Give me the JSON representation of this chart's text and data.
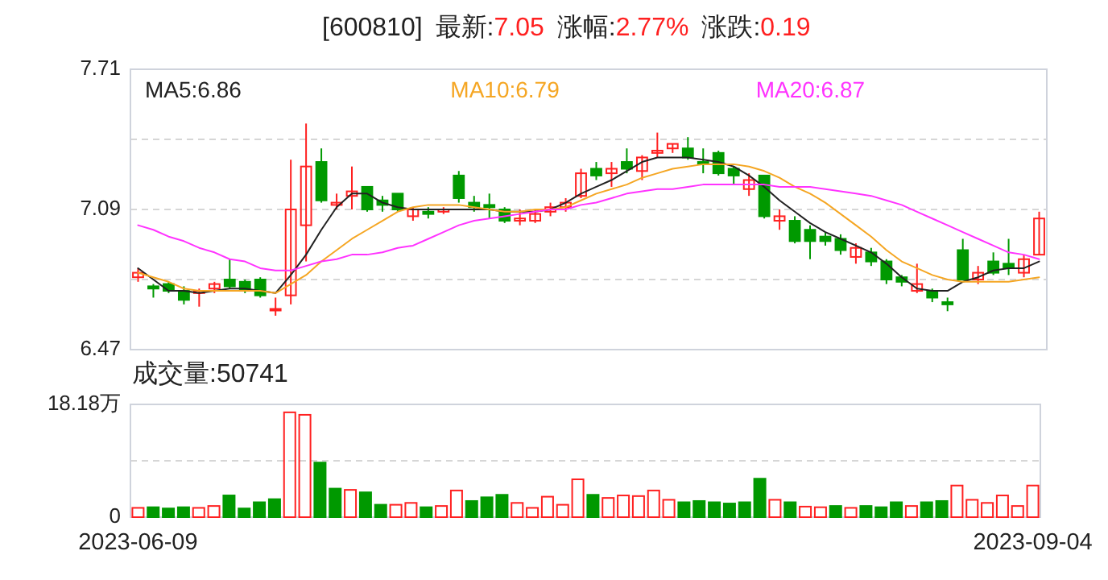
{
  "chart_data": [
    {
      "type": "candlestick",
      "title": "[600810] 最新:7.05 涨幅:2.77% 涨跌:0.19",
      "categories": [
        null,
        null,
        null,
        null,
        null,
        null,
        null,
        null,
        null,
        null,
        null,
        null,
        null,
        null,
        null,
        null,
        null,
        null,
        null,
        null,
        null,
        null,
        null,
        null,
        null,
        null,
        null,
        null,
        null,
        null,
        null,
        null,
        null,
        null,
        null,
        null,
        null,
        null,
        null,
        null,
        null,
        null,
        null,
        null,
        null,
        null,
        null,
        null,
        null,
        null,
        null,
        null,
        null,
        null,
        null,
        null,
        null,
        null,
        null,
        null
      ],
      "ohlc": [
        [
          6.79,
          6.83,
          6.77,
          6.81
        ],
        [
          6.75,
          6.76,
          6.7,
          6.74
        ],
        [
          6.76,
          6.77,
          6.72,
          6.73
        ],
        [
          6.73,
          6.75,
          6.67,
          6.69
        ],
        [
          6.72,
          6.74,
          6.66,
          6.73
        ],
        [
          6.74,
          6.77,
          6.72,
          6.76
        ],
        [
          6.78,
          6.87,
          6.74,
          6.75
        ],
        [
          6.77,
          6.78,
          6.72,
          6.73
        ],
        [
          6.78,
          6.79,
          6.7,
          6.71
        ],
        [
          6.65,
          6.7,
          6.62,
          6.65
        ],
        [
          6.71,
          7.31,
          6.67,
          7.09
        ],
        [
          7.02,
          7.47,
          6.86,
          7.28
        ],
        [
          7.3,
          7.36,
          7.12,
          7.13
        ],
        [
          7.11,
          7.16,
          7.09,
          7.12
        ],
        [
          7.15,
          7.28,
          7.09,
          7.17
        ],
        [
          7.19,
          7.19,
          7.08,
          7.09
        ],
        [
          7.13,
          7.15,
          7.08,
          7.11
        ],
        [
          7.16,
          7.16,
          7.08,
          7.09
        ],
        [
          7.06,
          7.1,
          7.04,
          7.09
        ],
        [
          7.08,
          7.1,
          7.05,
          7.07
        ],
        [
          7.08,
          7.1,
          7.07,
          7.09
        ],
        [
          7.24,
          7.26,
          7.12,
          7.14
        ],
        [
          7.12,
          7.15,
          7.08,
          7.1
        ],
        [
          7.11,
          7.16,
          7.05,
          7.1
        ],
        [
          7.09,
          7.1,
          7.03,
          7.04
        ],
        [
          7.04,
          7.09,
          7.02,
          7.05
        ],
        [
          7.04,
          7.09,
          7.03,
          7.07
        ],
        [
          7.08,
          7.12,
          7.06,
          7.1
        ],
        [
          7.1,
          7.14,
          7.08,
          7.12
        ],
        [
          7.15,
          7.27,
          7.14,
          7.25
        ],
        [
          7.27,
          7.3,
          7.22,
          7.24
        ],
        [
          7.25,
          7.3,
          7.19,
          7.27
        ],
        [
          7.3,
          7.36,
          7.25,
          7.27
        ],
        [
          7.26,
          7.33,
          7.22,
          7.32
        ],
        [
          7.34,
          7.43,
          7.32,
          7.35
        ],
        [
          7.36,
          7.38,
          7.34,
          7.38
        ],
        [
          7.36,
          7.41,
          7.31,
          7.32
        ],
        [
          7.3,
          7.36,
          7.25,
          7.29
        ],
        [
          7.34,
          7.35,
          7.24,
          7.25
        ],
        [
          7.27,
          7.28,
          7.2,
          7.24
        ],
        [
          7.18,
          7.25,
          7.15,
          7.22
        ],
        [
          7.24,
          7.24,
          7.05,
          7.06
        ],
        [
          7.04,
          7.09,
          7.0,
          7.06
        ],
        [
          7.04,
          7.06,
          6.94,
          6.95
        ],
        [
          7.0,
          7.02,
          6.87,
          6.95
        ],
        [
          6.97,
          6.99,
          6.93,
          6.95
        ],
        [
          6.96,
          6.98,
          6.89,
          6.91
        ],
        [
          6.88,
          6.94,
          6.85,
          6.92
        ],
        [
          6.9,
          6.92,
          6.84,
          6.86
        ],
        [
          6.86,
          6.87,
          6.76,
          6.78
        ],
        [
          6.79,
          6.8,
          6.75,
          6.77
        ],
        [
          6.73,
          6.85,
          6.72,
          6.76
        ],
        [
          6.73,
          6.74,
          6.68,
          6.7
        ],
        [
          6.68,
          6.7,
          6.64,
          6.67
        ],
        [
          6.91,
          6.96,
          6.78,
          6.78
        ],
        [
          6.78,
          6.84,
          6.76,
          6.81
        ],
        [
          6.86,
          6.9,
          6.8,
          6.81
        ],
        [
          6.85,
          6.96,
          6.8,
          6.83
        ],
        [
          6.81,
          6.89,
          6.79,
          6.87
        ],
        [
          6.89,
          7.08,
          6.89,
          7.05
        ]
      ],
      "colors": [
        "#ff2020",
        "#009900",
        "#009900",
        "#009900",
        "#ff2020",
        "#ff2020",
        "#009900",
        "#009900",
        "#009900",
        "#ff2020",
        "#ff2020",
        "#ff2020",
        "#009900",
        "#ff2020",
        "#ff2020",
        "#009900",
        "#009900",
        "#009900",
        "#ff2020",
        "#009900",
        "#ff2020",
        "#009900",
        "#009900",
        "#009900",
        "#009900",
        "#ff2020",
        "#ff2020",
        "#ff2020",
        "#ff2020",
        "#ff2020",
        "#009900",
        "#ff2020",
        "#009900",
        "#ff2020",
        "#ff2020",
        "#ff2020",
        "#009900",
        "#009900",
        "#009900",
        "#009900",
        "#ff2020",
        "#009900",
        "#ff2020",
        "#009900",
        "#009900",
        "#009900",
        "#009900",
        "#ff2020",
        "#009900",
        "#009900",
        "#009900",
        "#ff2020",
        "#009900",
        "#009900",
        "#009900",
        "#ff2020",
        "#009900",
        "#009900",
        "#ff2020",
        "#ff2020"
      ],
      "series": [
        {
          "type": "line",
          "name": "MA5:6.86",
          "color": "#222222",
          "values": [
            6.83,
            6.78,
            6.73,
            6.73,
            6.72,
            6.73,
            6.74,
            6.74,
            6.73,
            6.72,
            6.8,
            6.89,
            7.0,
            7.1,
            7.16,
            7.16,
            7.12,
            7.1,
            7.09,
            7.09,
            7.09,
            7.09,
            7.09,
            7.09,
            7.08,
            7.08,
            7.08,
            7.09,
            7.12,
            7.16,
            7.19,
            7.22,
            7.26,
            7.3,
            7.32,
            7.32,
            7.32,
            7.31,
            7.3,
            7.28,
            7.24,
            7.19,
            7.13,
            7.08,
            7.03,
            6.99,
            6.96,
            6.93,
            6.9,
            6.85,
            6.79,
            6.74,
            6.73,
            6.73,
            6.77,
            6.79,
            6.82,
            6.83,
            6.83,
            6.86
          ]
        },
        {
          "type": "line",
          "name": "MA10:6.79",
          "color": "#f5a623",
          "values": [
            6.81,
            6.79,
            6.77,
            6.74,
            6.73,
            6.73,
            6.73,
            6.73,
            6.73,
            6.72,
            6.76,
            6.8,
            6.86,
            6.91,
            6.96,
            7.0,
            7.04,
            7.08,
            7.1,
            7.11,
            7.11,
            7.11,
            7.1,
            7.09,
            7.08,
            7.08,
            7.09,
            7.09,
            7.1,
            7.13,
            7.16,
            7.18,
            7.2,
            7.23,
            7.25,
            7.27,
            7.28,
            7.29,
            7.29,
            7.29,
            7.28,
            7.26,
            7.23,
            7.19,
            7.16,
            7.12,
            7.07,
            7.02,
            6.97,
            6.91,
            6.86,
            6.83,
            6.8,
            6.78,
            6.77,
            6.77,
            6.77,
            6.77,
            6.78,
            6.79
          ]
        },
        {
          "type": "line",
          "name": "MA20:6.87",
          "color": "#ff33ff",
          "values": [
            7.02,
            7.0,
            6.97,
            6.95,
            6.92,
            6.9,
            6.87,
            6.86,
            6.83,
            6.82,
            6.82,
            6.84,
            6.86,
            6.87,
            6.89,
            6.89,
            6.9,
            6.92,
            6.93,
            6.96,
            6.99,
            7.02,
            7.04,
            7.05,
            7.06,
            7.07,
            7.08,
            7.09,
            7.09,
            7.11,
            7.12,
            7.14,
            7.16,
            7.17,
            7.18,
            7.18,
            7.19,
            7.2,
            7.2,
            7.2,
            7.2,
            7.2,
            7.19,
            7.19,
            7.19,
            7.18,
            7.17,
            7.16,
            7.15,
            7.13,
            7.11,
            7.08,
            7.05,
            7.02,
            6.99,
            6.96,
            6.93,
            6.9,
            6.89,
            6.87
          ]
        }
      ],
      "ylim": [
        6.47,
        7.71
      ],
      "yticks": [
        6.47,
        {
          "value": 6.78,
          "label": null
        },
        7.09,
        {
          "value": 7.4,
          "label": null
        },
        7.71
      ],
      "grid": "y",
      "tick_labels": "y",
      "legend": "top"
    },
    {
      "type": "bar",
      "title": "成交量:50741",
      "categories": [
        "2023-06-09",
        null,
        null,
        null,
        null,
        null,
        null,
        null,
        null,
        null,
        null,
        null,
        null,
        null,
        null,
        null,
        null,
        null,
        null,
        null,
        null,
        null,
        null,
        null,
        null,
        null,
        null,
        null,
        null,
        null,
        null,
        null,
        null,
        null,
        null,
        null,
        null,
        null,
        null,
        null,
        null,
        null,
        null,
        null,
        null,
        null,
        null,
        null,
        null,
        null,
        null,
        null,
        null,
        null,
        null,
        null,
        null,
        null,
        null,
        "2023-09-04"
      ],
      "values": [
        1.5,
        1.6,
        1.4,
        1.6,
        1.5,
        1.8,
        3.5,
        1.4,
        2.4,
        2.9,
        16.9,
        16.5,
        8.8,
        4.6,
        4.4,
        4.0,
        2.0,
        2.0,
        2.3,
        1.6,
        1.8,
        4.3,
        2.6,
        3.2,
        3.6,
        2.3,
        1.5,
        3.3,
        2.0,
        6.1,
        3.6,
        3.1,
        3.5,
        3.4,
        4.3,
        2.8,
        2.4,
        2.6,
        2.4,
        2.2,
        2.4,
        6.2,
        2.8,
        2.4,
        1.7,
        1.6,
        1.8,
        1.5,
        1.8,
        1.6,
        2.4,
        1.8,
        2.4,
        2.6,
        5.1,
        2.8,
        2.3,
        3.5,
        1.8,
        5.1
      ],
      "colors": [
        "#ff2020",
        "#009900",
        "#009900",
        "#009900",
        "#ff2020",
        "#ff2020",
        "#009900",
        "#009900",
        "#009900",
        "#009900",
        "#ff2020",
        "#ff2020",
        "#009900",
        "#009900",
        "#ff2020",
        "#009900",
        "#009900",
        "#ff2020",
        "#ff2020",
        "#009900",
        "#ff2020",
        "#ff2020",
        "#009900",
        "#009900",
        "#009900",
        "#ff2020",
        "#ff2020",
        "#ff2020",
        "#ff2020",
        "#ff2020",
        "#009900",
        "#ff2020",
        "#ff2020",
        "#ff2020",
        "#ff2020",
        "#ff2020",
        "#009900",
        "#009900",
        "#009900",
        "#009900",
        "#009900",
        "#009900",
        "#ff2020",
        "#009900",
        "#ff2020",
        "#ff2020",
        "#009900",
        "#ff2020",
        "#009900",
        "#009900",
        "#009900",
        "#ff2020",
        "#009900",
        "#009900",
        "#ff2020",
        "#ff2020",
        "#ff2020",
        "#ff2020",
        "#ff2020",
        "#ff2020"
      ],
      "ylim": [
        0,
        18.18
      ],
      "yticks": [
        0,
        {
          "value": 9.09,
          "label": null
        },
        {
          "value": 18.18,
          "label": "18.18万"
        }
      ],
      "grid": "y"
    }
  ]
}
